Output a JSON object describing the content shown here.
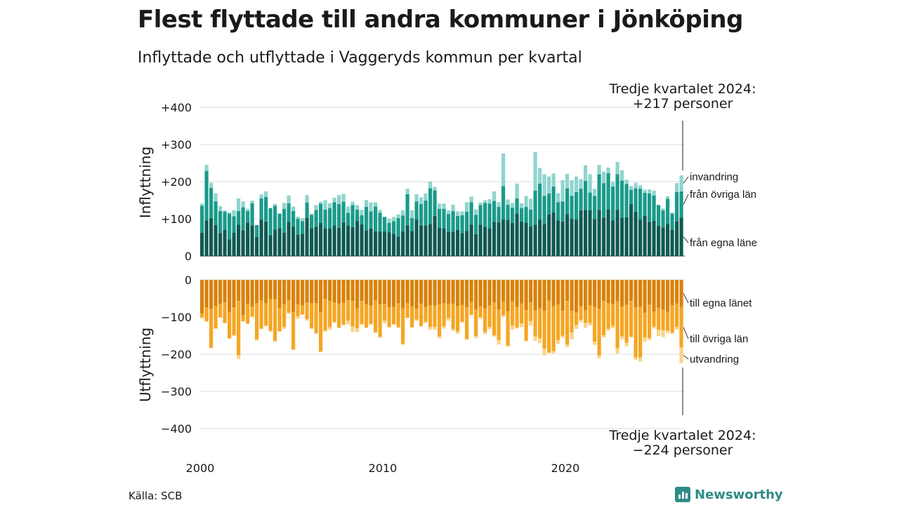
{
  "title": "Flest flyttade till andra kommuner i Jönköping",
  "subtitle": "Inflyttade och utflyttade i Vaggeryds kommun per kvartal",
  "source": "Källa: SCB",
  "brand": "Newsworthy",
  "colors": {
    "in_egna": "#0f5a52",
    "in_ovriga": "#1a9a8a",
    "in_invandring": "#8fd5cd",
    "ut_egna": "#d9820a",
    "ut_ovriga": "#f5a623",
    "ut_utvandring": "#fbd48a",
    "grid": "#dcdcdc",
    "brand": "#2e8b85"
  },
  "chart_data": [
    {
      "panel": "top",
      "type": "bar",
      "stacked": true,
      "ylabel": "Inflyttning",
      "ylim": [
        0,
        400
      ],
      "yticks": [
        0,
        100,
        200,
        300,
        400
      ],
      "ytick_labels": [
        "0",
        "+100",
        "+200",
        "+300",
        "+400"
      ],
      "annotation": [
        "Tredje kvartalet 2024:",
        "+217 personer"
      ],
      "series": [
        {
          "name": "från egna läne",
          "values": [
            63,
            96,
            101,
            83,
            62,
            71,
            45,
            63,
            84,
            69,
            90,
            82,
            51,
            98,
            93,
            56,
            71,
            75,
            63,
            92,
            79,
            58,
            60,
            103,
            75,
            79,
            89,
            75,
            75,
            82,
            76,
            91,
            82,
            78,
            95,
            85,
            69,
            74,
            66,
            66,
            66,
            64,
            60,
            52,
            66,
            82,
            67,
            98,
            82,
            82,
            86,
            108,
            76,
            75,
            65,
            65,
            70,
            62,
            67,
            84,
            59,
            84,
            79,
            75,
            92,
            91,
            98,
            97,
            89,
            114,
            93,
            90,
            80,
            84,
            98,
            86,
            112,
            117,
            96,
            93,
            113,
            100,
            98,
            123,
            124,
            124,
            99,
            124,
            103,
            126,
            96,
            125,
            103,
            104,
            140,
            119,
            98,
            109,
            92,
            95,
            81,
            77,
            86,
            71,
            94,
            103
          ]
        },
        {
          "name": "från övriga län",
          "values": [
            72,
            133,
            82,
            64,
            59,
            48,
            69,
            44,
            37,
            62,
            31,
            60,
            32,
            57,
            66,
            73,
            64,
            39,
            64,
            50,
            42,
            42,
            34,
            41,
            36,
            45,
            52,
            50,
            54,
            63,
            64,
            55,
            34,
            59,
            30,
            25,
            63,
            46,
            67,
            50,
            39,
            25,
            34,
            50,
            43,
            84,
            35,
            49,
            58,
            67,
            96,
            69,
            51,
            52,
            48,
            56,
            38,
            48,
            52,
            61,
            52,
            53,
            64,
            66,
            56,
            41,
            90,
            41,
            41,
            41,
            36,
            42,
            45,
            92,
            97,
            76,
            56,
            70,
            49,
            54,
            69,
            62,
            74,
            58,
            78,
            47,
            63,
            96,
            93,
            97,
            91,
            95,
            100,
            90,
            38,
            63,
            83,
            61,
            76,
            68,
            56,
            46,
            68,
            43,
            78,
            71
          ]
        },
        {
          "name": "invandring",
          "values": [
            6,
            16,
            14,
            22,
            13,
            4,
            3,
            16,
            34,
            16,
            6,
            7,
            0,
            11,
            15,
            0,
            5,
            0,
            16,
            21,
            12,
            6,
            8,
            20,
            3,
            13,
            5,
            25,
            13,
            12,
            24,
            21,
            17,
            9,
            12,
            14,
            19,
            24,
            11,
            8,
            1,
            11,
            11,
            10,
            14,
            15,
            21,
            19,
            18,
            19,
            19,
            9,
            14,
            14,
            10,
            17,
            12,
            10,
            26,
            15,
            14,
            7,
            7,
            12,
            26,
            13,
            88,
            14,
            13,
            40,
            13,
            29,
            29,
            104,
            42,
            58,
            46,
            35,
            24,
            57,
            39,
            42,
            42,
            26,
            42,
            49,
            19,
            25,
            31,
            15,
            12,
            33,
            28,
            11,
            10,
            15,
            9,
            8,
            11,
            13,
            1,
            5,
            7,
            3,
            24,
            43
          ]
        }
      ]
    },
    {
      "panel": "bottom",
      "type": "bar",
      "stacked": true,
      "ylabel": "Utflyttning",
      "ylim": [
        -400,
        0
      ],
      "yticks": [
        0,
        -100,
        -200,
        -300,
        -400
      ],
      "ytick_labels": [
        "0",
        "−100",
        "−200",
        "−300",
        "−400"
      ],
      "annotation": [
        "Tredje kvartalet 2024:",
        "−224 personer"
      ],
      "x_tick_labels": [
        "2000",
        "2010",
        "2020"
      ],
      "x_tick_quarters": [
        0,
        40,
        80
      ],
      "series": [
        {
          "name": "till egna länet",
          "values": [
            -91,
            -74,
            -78,
            -71,
            -65,
            -61,
            -86,
            -74,
            -57,
            -96,
            -65,
            -72,
            -63,
            -56,
            -63,
            -52,
            -52,
            -76,
            -65,
            -55,
            -87,
            -66,
            -69,
            -61,
            -63,
            -63,
            -86,
            -51,
            -57,
            -61,
            -64,
            -62,
            -55,
            -57,
            -77,
            -57,
            -66,
            -69,
            -56,
            -66,
            -65,
            -74,
            -73,
            -63,
            -77,
            -63,
            -72,
            -78,
            -64,
            -74,
            -68,
            -69,
            -66,
            -63,
            -66,
            -64,
            -71,
            -67,
            -74,
            -60,
            -79,
            -72,
            -77,
            -69,
            -61,
            -80,
            -59,
            -84,
            -58,
            -73,
            -64,
            -81,
            -61,
            -82,
            -77,
            -83,
            -56,
            -71,
            -66,
            -83,
            -57,
            -83,
            -88,
            -71,
            -81,
            -68,
            -73,
            -78,
            -57,
            -63,
            -65,
            -58,
            -72,
            -67,
            -57,
            -74,
            -73,
            -89,
            -66,
            -85,
            -76,
            -80,
            -86,
            -68,
            -64,
            -73
          ]
        },
        {
          "name": "till övriga län",
          "values": [
            -9,
            -38,
            -105,
            -60,
            -36,
            -55,
            -71,
            -74,
            -146,
            -15,
            -53,
            -26,
            -97,
            -75,
            -60,
            -84,
            -112,
            -62,
            -62,
            -33,
            -101,
            -32,
            -24,
            -45,
            -67,
            -80,
            -107,
            -85,
            -71,
            -52,
            -65,
            -58,
            -55,
            -69,
            -53,
            -61,
            -62,
            -49,
            -85,
            -87,
            -45,
            -52,
            -46,
            -64,
            -95,
            -38,
            -55,
            -29,
            -60,
            -39,
            -59,
            -58,
            -86,
            -62,
            -37,
            -68,
            -68,
            -46,
            -85,
            -34,
            -72,
            -28,
            -64,
            -58,
            -88,
            -82,
            -37,
            -93,
            -65,
            -55,
            -53,
            -82,
            -50,
            -70,
            -80,
            -102,
            -140,
            -121,
            -96,
            -67,
            -117,
            -59,
            -33,
            -37,
            -35,
            -48,
            -93,
            -125,
            -92,
            -69,
            -59,
            -126,
            -80,
            -102,
            -96,
            -135,
            -136,
            -66,
            -91,
            -41,
            -58,
            -56,
            -51,
            -74,
            -63,
            -109
          ]
        },
        {
          "name": "utvandring",
          "values": [
            -5,
            0,
            -1,
            0,
            0,
            0,
            -2,
            -3,
            -10,
            -2,
            0,
            -3,
            -3,
            -2,
            -2,
            -4,
            -2,
            -2,
            -5,
            -4,
            0,
            -7,
            -2,
            -4,
            -2,
            -2,
            -2,
            -4,
            -6,
            -3,
            -1,
            -3,
            -10,
            -14,
            -11,
            -3,
            -2,
            -3,
            -2,
            -3,
            -7,
            -3,
            -2,
            -3,
            -3,
            -2,
            -3,
            -3,
            -2,
            -3,
            -7,
            -7,
            -5,
            -6,
            -7,
            -5,
            -6,
            -3,
            -3,
            -2,
            -6,
            -5,
            -5,
            -6,
            -4,
            -12,
            -2,
            -3,
            -11,
            -3,
            -10,
            -3,
            -12,
            -12,
            -13,
            -18,
            -1,
            -6,
            -10,
            -6,
            -7,
            -18,
            -11,
            -6,
            -13,
            -7,
            -9,
            -8,
            -6,
            -5,
            -6,
            -14,
            -8,
            -10,
            -2,
            -6,
            -11,
            -11,
            -5,
            -5,
            -17,
            -18,
            -6,
            -4,
            -7,
            -42
          ]
        }
      ]
    }
  ]
}
